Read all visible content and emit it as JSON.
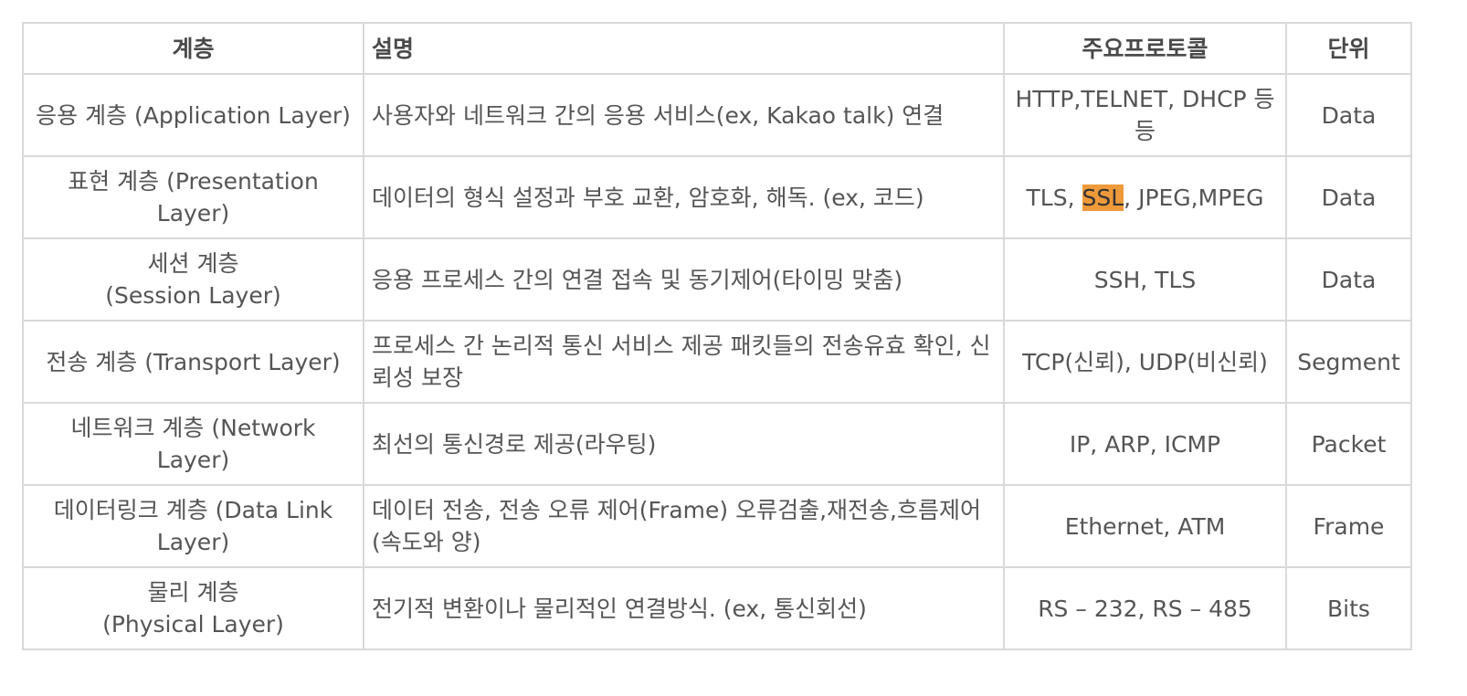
{
  "headers": {
    "layer": "계층",
    "description": "설명",
    "protocols": "주요프로토콜",
    "unit": "단위"
  },
  "rows": [
    {
      "layer": "응용 계층 (Application Layer)",
      "description": "사용자와 네트워크 간의 응용 서비스(ex, Kakao talk) 연결",
      "protocols": "HTTP,TELNET, DHCP 등등",
      "unit": "Data"
    },
    {
      "layer": "표현 계층 (Presentation Layer)",
      "description": "데이터의 형식 설정과 부호 교환, 암호화, 해독. (ex, 코드)",
      "protocols_before": "TLS, ",
      "protocols_highlight": "SSL",
      "protocols_after": ", JPEG,MPEG",
      "unit": "Data"
    },
    {
      "layer_line1": "세션 계층",
      "layer_line2": "(Session Layer)",
      "description": "응용 프로세스 간의 연결 접속 및 동기제어(타이밍 맞춤)",
      "protocols": "SSH, TLS",
      "unit": "Data"
    },
    {
      "layer": "전송 계층 (Transport Layer)",
      "description": "프로세스 간 논리적 통신 서비스 제공 패킷들의 전송유효 확인, 신뢰성 보장",
      "protocols": "TCP(신뢰), UDP(비신뢰)",
      "unit": "Segment"
    },
    {
      "layer": "네트워크 계층 (Network Layer)",
      "description": "최선의 통신경로 제공(라우팅)",
      "protocols": "IP, ARP, ICMP",
      "unit": "Packet"
    },
    {
      "layer": "데이터링크 계층 (Data Link Layer)",
      "description": "데이터 전송, 전송 오류 제어(Frame) 오류검출,재전송,흐름제어(속도와 양)",
      "protocols": "Ethernet, ATM",
      "unit": "Frame"
    },
    {
      "layer_line1": "물리 계층",
      "layer_line2": "(Physical Layer)",
      "description": "전기적 변환이나 물리적인 연결방식. (ex, 통신회선)",
      "protocols": "RS – 232, RS – 485",
      "unit": "Bits"
    }
  ],
  "colors": {
    "highlight": "#ee9a3a",
    "border": "#d9d9d9",
    "text": "#555555"
  }
}
